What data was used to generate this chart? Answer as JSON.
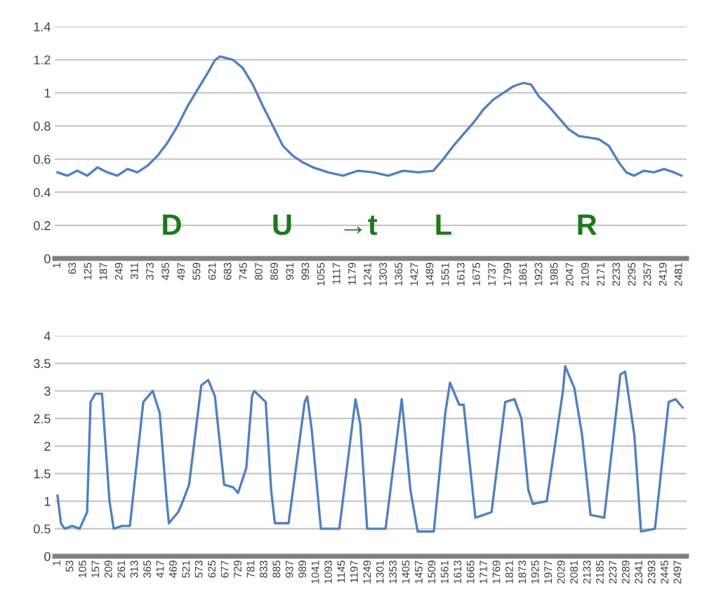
{
  "chart_data": [
    {
      "type": "line",
      "x": [
        1,
        40,
        80,
        120,
        160,
        200,
        240,
        280,
        320,
        360,
        400,
        440,
        480,
        520,
        560,
        600,
        630,
        650,
        700,
        740,
        780,
        820,
        860,
        900,
        940,
        980,
        1020,
        1080,
        1140,
        1200,
        1260,
        1320,
        1380,
        1440,
        1500,
        1540,
        1580,
        1620,
        1660,
        1700,
        1740,
        1780,
        1820,
        1860,
        1890,
        1920,
        1960,
        2000,
        2040,
        2080,
        2120,
        2160,
        2200,
        2240,
        2270,
        2300,
        2340,
        2380,
        2420,
        2460,
        2490
      ],
      "series": [
        {
          "color": "#4f81bd",
          "values": [
            0.52,
            0.5,
            0.53,
            0.5,
            0.55,
            0.52,
            0.5,
            0.54,
            0.52,
            0.56,
            0.62,
            0.7,
            0.8,
            0.92,
            1.02,
            1.12,
            1.2,
            1.22,
            1.2,
            1.15,
            1.05,
            0.92,
            0.8,
            0.68,
            0.62,
            0.58,
            0.55,
            0.52,
            0.5,
            0.53,
            0.52,
            0.5,
            0.53,
            0.52,
            0.53,
            0.6,
            0.68,
            0.75,
            0.82,
            0.9,
            0.96,
            1.0,
            1.04,
            1.06,
            1.05,
            0.98,
            0.92,
            0.85,
            0.78,
            0.74,
            0.73,
            0.72,
            0.68,
            0.58,
            0.52,
            0.5,
            0.53,
            0.52,
            0.54,
            0.52,
            0.5
          ]
        }
      ],
      "xlim": [
        -10,
        2510
      ],
      "xticks": [
        1,
        63,
        125,
        187,
        249,
        311,
        373,
        435,
        497,
        559,
        621,
        683,
        745,
        807,
        869,
        931,
        993,
        1055,
        1117,
        1179,
        1241,
        1303,
        1365,
        1427,
        1489,
        1551,
        1613,
        1675,
        1737,
        1799,
        1861,
        1923,
        1985,
        2047,
        2109,
        2171,
        2233,
        2295,
        2357,
        2419,
        2481
      ],
      "ylim": [
        0,
        1.4
      ],
      "yticks": [
        0,
        0.2,
        0.4,
        0.6,
        0.8,
        1,
        1.2,
        1.4
      ],
      "grid": "y",
      "legend": false,
      "annotations": [
        "D",
        "U",
        "→t",
        "L",
        "R"
      ]
    },
    {
      "type": "line",
      "x": [
        1,
        15,
        30,
        60,
        90,
        120,
        134,
        153,
        180,
        190,
        210,
        227,
        260,
        292,
        346,
        384,
        412,
        440,
        449,
        486,
        505,
        530,
        579,
        607,
        634,
        671,
        708,
        727,
        760,
        783,
        792,
        838,
        860,
        875,
        930,
        995,
        1005,
        1023,
        1060,
        1134,
        1199,
        1218,
        1246,
        1320,
        1385,
        1420,
        1449,
        1514,
        1560,
        1579,
        1616,
        1634,
        1681,
        1746,
        1801,
        1838,
        1866,
        1894,
        1912,
        1968,
        2033,
        2042,
        2079,
        2110,
        2144,
        2199,
        2264,
        2283,
        2320,
        2347,
        2403,
        2458,
        2486,
        2514
      ],
      "series": [
        {
          "color": "#4f81bd",
          "values": [
            1.1,
            0.6,
            0.5,
            0.55,
            0.5,
            0.8,
            2.8,
            2.95,
            2.95,
            2.3,
            1.0,
            0.5,
            0.55,
            0.55,
            2.8,
            3.0,
            2.6,
            1.0,
            0.6,
            0.8,
            1.0,
            1.3,
            3.1,
            3.2,
            2.9,
            1.3,
            1.25,
            1.15,
            1.6,
            2.9,
            3.0,
            2.8,
            1.2,
            0.6,
            0.6,
            2.8,
            2.9,
            2.3,
            0.5,
            0.5,
            2.85,
            2.4,
            0.5,
            0.5,
            2.85,
            1.2,
            0.45,
            0.45,
            2.6,
            3.15,
            2.75,
            2.75,
            0.7,
            0.8,
            2.8,
            2.85,
            2.5,
            1.2,
            0.95,
            1.0,
            3.0,
            3.45,
            3.05,
            2.2,
            0.75,
            0.7,
            3.3,
            3.35,
            2.2,
            0.45,
            0.5,
            2.8,
            2.85,
            2.7
          ]
        }
      ],
      "xlim": [
        -10,
        2530
      ],
      "xticks": [
        1,
        53,
        105,
        157,
        209,
        261,
        313,
        365,
        417,
        469,
        521,
        573,
        625,
        677,
        729,
        781,
        833,
        885,
        937,
        989,
        1041,
        1093,
        1145,
        1197,
        1249,
        1301,
        1353,
        1405,
        1457,
        1509,
        1561,
        1613,
        1665,
        1717,
        1769,
        1821,
        1873,
        1925,
        1977,
        2029,
        2081,
        2133,
        2185,
        2237,
        2289,
        2341,
        2393,
        2445,
        2497
      ],
      "ylim": [
        0,
        4
      ],
      "yticks": [
        0,
        0.5,
        1,
        1.5,
        2,
        2.5,
        3,
        3.5,
        4
      ],
      "grid": "y",
      "legend": false
    }
  ]
}
